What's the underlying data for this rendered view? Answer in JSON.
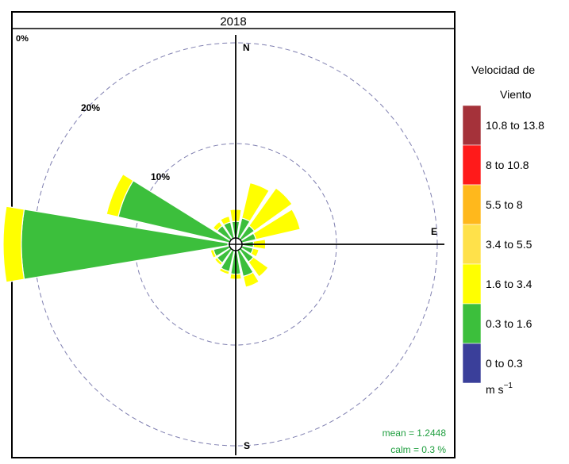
{
  "chart_data": {
    "type": "windrose",
    "title": "2018",
    "directions": [
      "N",
      "NNE",
      "NE",
      "ENE",
      "E",
      "ESE",
      "SE",
      "SSE",
      "S",
      "SSW",
      "SW",
      "WSW",
      "W",
      "WNW",
      "NW",
      "NNW"
    ],
    "bin_labels": [
      "0 to 0.3",
      "0.3 to 1.6",
      "1.6 to 3.4",
      "3.4 to 5.5",
      "5.5 to 8",
      "8 to 10.8",
      "10.8 to 13.8"
    ],
    "bin_colors": [
      "#3a3f9a",
      "#3cbf3c",
      "#ffff00",
      "#ffe14a",
      "#ffb81c",
      "#ff1a1a",
      "#a5323a"
    ],
    "series": [
      {
        "name": "0 to 0.3",
        "values": [
          0,
          0,
          0,
          0,
          0,
          0,
          0,
          0,
          0,
          0,
          0,
          0,
          0.3,
          0,
          0,
          0
        ]
      },
      {
        "name": "0.3 to 1.6",
        "values": [
          1.8,
          2.2,
          1.8,
          1.6,
          1.3,
          1.3,
          1.7,
          2.8,
          2.5,
          2.3,
          1.8,
          1.8,
          20.5,
          11.5,
          1.8,
          1.8
        ]
      },
      {
        "name": "1.6 to 3.4",
        "values": [
          1.2,
          3.6,
          4.6,
          4.5,
          1.2,
          0.6,
          1.8,
          1.1,
          0.5,
          0.3,
          0.3,
          0.3,
          1.8,
          1.2,
          0.5,
          0.6
        ]
      },
      {
        "name": "3.4 to 5.5",
        "values": [
          0,
          0,
          0,
          0,
          0,
          0,
          0,
          0,
          0,
          0,
          0,
          0,
          0,
          0,
          0,
          0
        ]
      },
      {
        "name": "5.5 to 8",
        "values": [
          0,
          0,
          0,
          0,
          0,
          0,
          0,
          0,
          0,
          0,
          0,
          0,
          0,
          0,
          0,
          0
        ]
      },
      {
        "name": "8 to 10.8",
        "values": [
          0,
          0,
          0,
          0,
          0,
          0,
          0,
          0,
          0,
          0,
          0,
          0,
          0,
          0,
          0,
          0
        ]
      },
      {
        "name": "10.8 to 13.8",
        "values": [
          0,
          0,
          0,
          0,
          0,
          0,
          0,
          0,
          0,
          0,
          0,
          0,
          0,
          0,
          0,
          0
        ]
      }
    ],
    "radial_ticks": [
      0,
      10,
      20
    ],
    "radial_tick_labels": [
      "0%",
      "10%",
      "20%"
    ],
    "compass_labels": {
      "N": "N",
      "E": "E",
      "S": "S"
    },
    "legend": {
      "title_line1": "Velocidad de",
      "title_line2": "Viento",
      "unit": "m s",
      "unit_exp": "−1",
      "placement": "right"
    },
    "stats": {
      "mean": "mean = 1.2448",
      "calm": "calm = 0.3 %"
    },
    "colors": {
      "axis": "#000000",
      "grid": "#7f7fb0",
      "stats_text": "#1e9e3e"
    }
  }
}
